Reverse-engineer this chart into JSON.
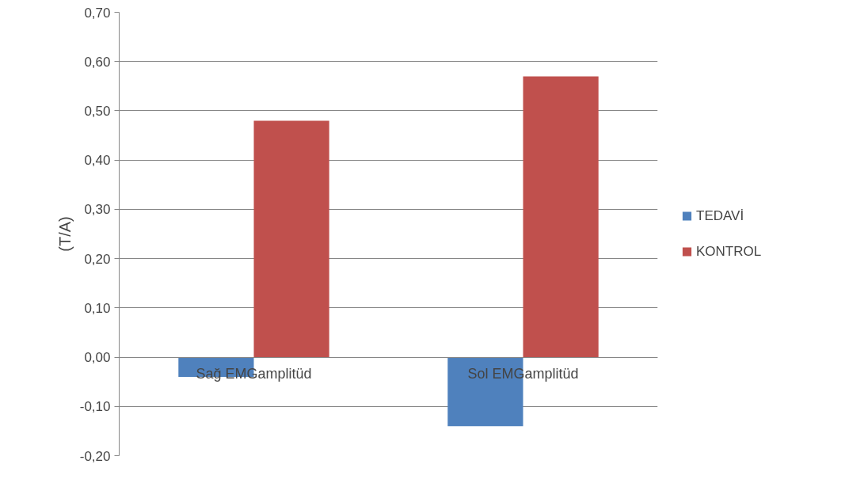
{
  "chart_data": {
    "type": "bar",
    "ylabel": "(T/A)",
    "categories": [
      "Sağ EMGamplitüd",
      "Sol EMGamplitüd"
    ],
    "series": [
      {
        "name": "TEDAVİ",
        "color": "#4f81bd",
        "values": [
          -0.04,
          -0.14
        ]
      },
      {
        "name": "KONTROL",
        "color": "#c0504d",
        "values": [
          0.48,
          0.57
        ]
      }
    ],
    "ylim": [
      -0.2,
      0.7
    ],
    "yticks": [
      {
        "value": -0.2,
        "label": "-0,20"
      },
      {
        "value": -0.1,
        "label": "-0,10"
      },
      {
        "value": 0,
        "label": "0,00"
      },
      {
        "value": 0.1,
        "label": "0,10"
      },
      {
        "value": 0.2,
        "label": "0,20"
      },
      {
        "value": 0.3,
        "label": "0,30"
      },
      {
        "value": 0.4,
        "label": "0,40"
      },
      {
        "value": 0.5,
        "label": "0,50"
      },
      {
        "value": 0.6,
        "label": "0,60"
      },
      {
        "value": 0.7,
        "label": "0,70"
      }
    ],
    "grid": "y",
    "legend": "right"
  }
}
